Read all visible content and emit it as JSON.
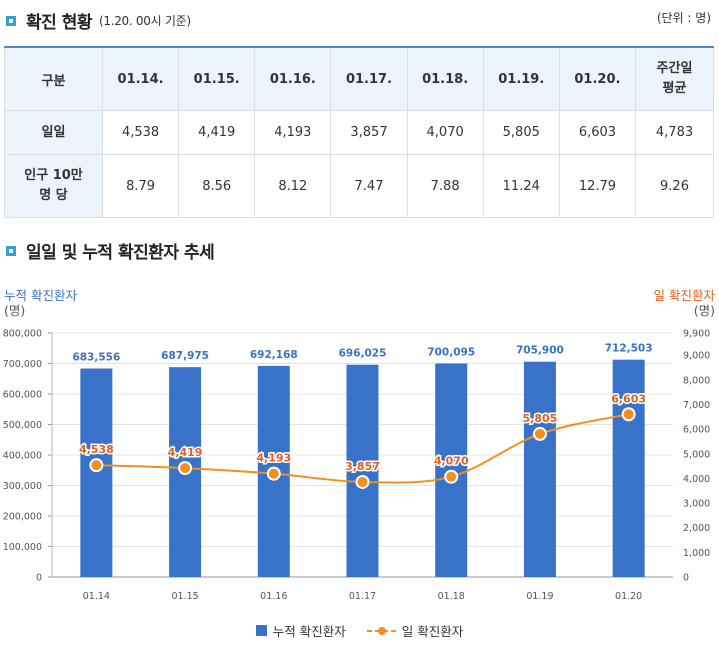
{
  "section1": {
    "title": "확진 현황",
    "note": "(1.20. 00시 기준)",
    "unit": "(단위 : 명)"
  },
  "table": {
    "corner": "구분",
    "columns": [
      "01.14.",
      "01.15.",
      "01.16.",
      "01.17.",
      "01.18.",
      "01.19.",
      "01.20."
    ],
    "avg_header": [
      "주간일",
      "평균"
    ],
    "rows": [
      {
        "label": [
          "일일"
        ],
        "values": [
          "4,538",
          "4,419",
          "4,193",
          "3,857",
          "4,070",
          "5,805",
          "6,603",
          "4,783"
        ]
      },
      {
        "label": [
          "인구 10만",
          "명 당"
        ],
        "values": [
          "8.79",
          "8.56",
          "8.12",
          "7.47",
          "7.88",
          "11.24",
          "12.79",
          "9.26"
        ]
      }
    ]
  },
  "section2": {
    "title": "일일 및 누적 확진환자 추세"
  },
  "chart_data": {
    "type": "bar",
    "categories": [
      "01.14",
      "01.15",
      "01.16",
      "01.17",
      "01.18",
      "01.19",
      "01.20"
    ],
    "series": [
      {
        "name": "누적 확진환자",
        "type": "bar",
        "axis": "left",
        "color": "#3872c9",
        "values": [
          683556,
          687975,
          692168,
          696025,
          700095,
          705900,
          712503
        ],
        "labels": [
          "683,556",
          "687,975",
          "692,168",
          "696,025",
          "700,095",
          "705,900",
          "712,503"
        ]
      },
      {
        "name": "일 확진환자",
        "type": "line",
        "axis": "right",
        "color": "#f0901e",
        "values": [
          4538,
          4419,
          4193,
          3857,
          4070,
          5805,
          6603
        ],
        "labels": [
          "4,538",
          "4,419",
          "4,193",
          "3,857",
          "4,070",
          "5,805",
          "6,603"
        ]
      }
    ],
    "y_left": {
      "label": "누적 확진환자",
      "unit": "(명)",
      "lim": [
        0,
        800000
      ],
      "ticks": [
        0,
        100000,
        200000,
        300000,
        400000,
        500000,
        600000,
        700000,
        800000
      ],
      "tick_labels": [
        "0",
        "100,000",
        "200,000",
        "300,000",
        "400,000",
        "500,000",
        "600,000",
        "700,000",
        "800,000"
      ]
    },
    "y_right": {
      "label": "일 확진환자",
      "unit": "(명)",
      "lim": [
        0,
        9900
      ],
      "ticks": [
        0,
        1000,
        2000,
        3000,
        4000,
        5000,
        6000,
        7000,
        8000,
        9000,
        9900
      ],
      "tick_labels": [
        "0",
        "1,000",
        "2,000",
        "3,000",
        "4,000",
        "5,000",
        "6,000",
        "7,000",
        "8,000",
        "9,000",
        "9,900"
      ]
    },
    "grid": true,
    "legend": "bottom-center",
    "label_color_bar": "#3a72c4",
    "label_color_line": "#e0601d"
  }
}
